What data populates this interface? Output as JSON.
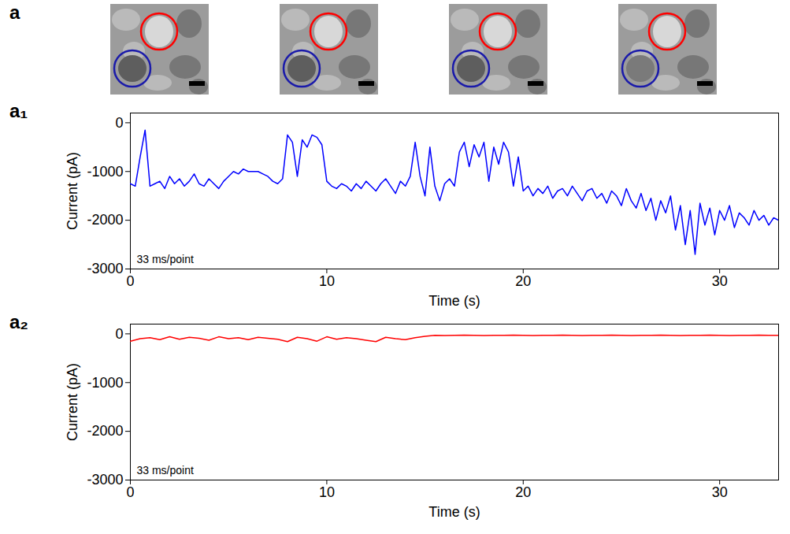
{
  "figure_label": "a",
  "chart_data": [
    {
      "type": "line",
      "title": "a₁",
      "xlabel": "Time (s)",
      "ylabel": "Current (pA)",
      "annotation": "33 ms/point",
      "color": "#0000ff",
      "grid": false,
      "xlim": [
        0,
        33
      ],
      "xticks": [
        0,
        10,
        20,
        30
      ],
      "ylim": [
        -3000,
        200
      ],
      "yticks": [
        -3000,
        -2000,
        -1000,
        0
      ],
      "x": [
        0,
        0.25,
        0.5,
        0.75,
        1,
        1.25,
        1.5,
        1.75,
        2,
        2.25,
        2.5,
        2.75,
        3,
        3.25,
        3.5,
        3.75,
        4,
        4.25,
        4.5,
        4.75,
        5,
        5.25,
        5.5,
        5.75,
        6,
        6.25,
        6.5,
        6.75,
        7,
        7.25,
        7.5,
        7.75,
        8,
        8.25,
        8.5,
        8.75,
        9,
        9.25,
        9.5,
        9.75,
        10,
        10.25,
        10.5,
        10.75,
        11,
        11.25,
        11.5,
        11.75,
        12,
        12.25,
        12.5,
        12.75,
        13,
        13.25,
        13.5,
        13.75,
        14,
        14.25,
        14.5,
        14.75,
        15,
        15.25,
        15.5,
        15.75,
        16,
        16.25,
        16.5,
        16.75,
        17,
        17.25,
        17.5,
        17.75,
        18,
        18.25,
        18.5,
        18.75,
        19,
        19.25,
        19.5,
        19.75,
        20,
        20.25,
        20.5,
        20.75,
        21,
        21.25,
        21.5,
        21.75,
        22,
        22.25,
        22.5,
        22.75,
        23,
        23.25,
        23.5,
        23.75,
        24,
        24.25,
        24.5,
        24.75,
        25,
        25.25,
        25.5,
        25.75,
        26,
        26.25,
        26.5,
        26.75,
        27,
        27.25,
        27.5,
        27.75,
        28,
        28.25,
        28.5,
        28.75,
        29,
        29.25,
        29.5,
        29.75,
        30,
        30.25,
        30.5,
        30.75,
        31,
        31.25,
        31.5,
        31.75,
        32,
        32.25,
        32.5,
        32.75,
        33
      ],
      "values": [
        -1250,
        -1300,
        -700,
        -150,
        -1300,
        -1250,
        -1200,
        -1350,
        -1100,
        -1250,
        -1150,
        -1300,
        -1200,
        -1050,
        -1250,
        -1300,
        -1150,
        -1250,
        -1350,
        -1200,
        -1100,
        -1000,
        -1050,
        -950,
        -1000,
        -1000,
        -1000,
        -1050,
        -1100,
        -1200,
        -1250,
        -1150,
        -250,
        -400,
        -1100,
        -350,
        -500,
        -250,
        -300,
        -450,
        -1200,
        -1300,
        -1350,
        -1250,
        -1300,
        -1400,
        -1250,
        -1350,
        -1200,
        -1300,
        -1400,
        -1250,
        -1150,
        -1300,
        -1450,
        -1200,
        -1300,
        -1100,
        -400,
        -1100,
        -1500,
        -500,
        -1300,
        -1600,
        -1250,
        -1150,
        -1300,
        -600,
        -400,
        -900,
        -450,
        -700,
        -400,
        -1200,
        -500,
        -850,
        -400,
        -600,
        -1300,
        -700,
        -1400,
        -1300,
        -1500,
        -1350,
        -1450,
        -1300,
        -1550,
        -1400,
        -1350,
        -1500,
        -1300,
        -1450,
        -1600,
        -1400,
        -1350,
        -1550,
        -1450,
        -1650,
        -1400,
        -1500,
        -1700,
        -1350,
        -1600,
        -1750,
        -1450,
        -1800,
        -1550,
        -2000,
        -1600,
        -1850,
        -1500,
        -2200,
        -1700,
        -2500,
        -1800,
        -2700,
        -1650,
        -2100,
        -1750,
        -2300,
        -1800,
        -2000,
        -1700,
        -2150,
        -1850,
        -1950,
        -2100,
        -1800,
        -2000,
        -1900,
        -2100,
        -1950,
        -2000
      ]
    },
    {
      "type": "line",
      "title": "a₂",
      "xlabel": "Time (s)",
      "ylabel": "Current (pA)",
      "annotation": "33 ms/point",
      "color": "#ff0000",
      "grid": false,
      "xlim": [
        0,
        33
      ],
      "xticks": [
        0,
        10,
        20,
        30
      ],
      "ylim": [
        -3000,
        200
      ],
      "yticks": [
        -3000,
        -2000,
        -1000,
        0
      ],
      "x": [
        0,
        0.5,
        1,
        1.5,
        2,
        2.5,
        3,
        3.5,
        4,
        4.5,
        5,
        5.5,
        6,
        6.5,
        7,
        7.5,
        8,
        8.5,
        9,
        9.5,
        10,
        10.5,
        11,
        11.5,
        12,
        12.5,
        13,
        13.5,
        14,
        14.5,
        15,
        15.5,
        16,
        16.5,
        17,
        17.5,
        18,
        18.5,
        19,
        19.5,
        20,
        20.5,
        21,
        21.5,
        22,
        22.5,
        23,
        23.5,
        24,
        24.5,
        25,
        25.5,
        26,
        26.5,
        27,
        27.5,
        28,
        28.5,
        29,
        29.5,
        30,
        30.5,
        31,
        31.5,
        32,
        32.5,
        33
      ],
      "values": [
        -150,
        -100,
        -80,
        -120,
        -60,
        -110,
        -70,
        -90,
        -130,
        -60,
        -100,
        -80,
        -120,
        -70,
        -90,
        -110,
        -160,
        -70,
        -100,
        -150,
        -60,
        -110,
        -80,
        -100,
        -130,
        -160,
        -70,
        -100,
        -120,
        -80,
        -50,
        -30,
        -35,
        -30,
        -25,
        -30,
        -35,
        -30,
        -30,
        -25,
        -30,
        -35,
        -30,
        -30,
        -25,
        -30,
        -35,
        -30,
        -30,
        -25,
        -30,
        -35,
        -30,
        -30,
        -25,
        -30,
        -35,
        -30,
        -30,
        -25,
        -30,
        -35,
        -30,
        -30,
        -25,
        -30,
        -30
      ]
    }
  ]
}
